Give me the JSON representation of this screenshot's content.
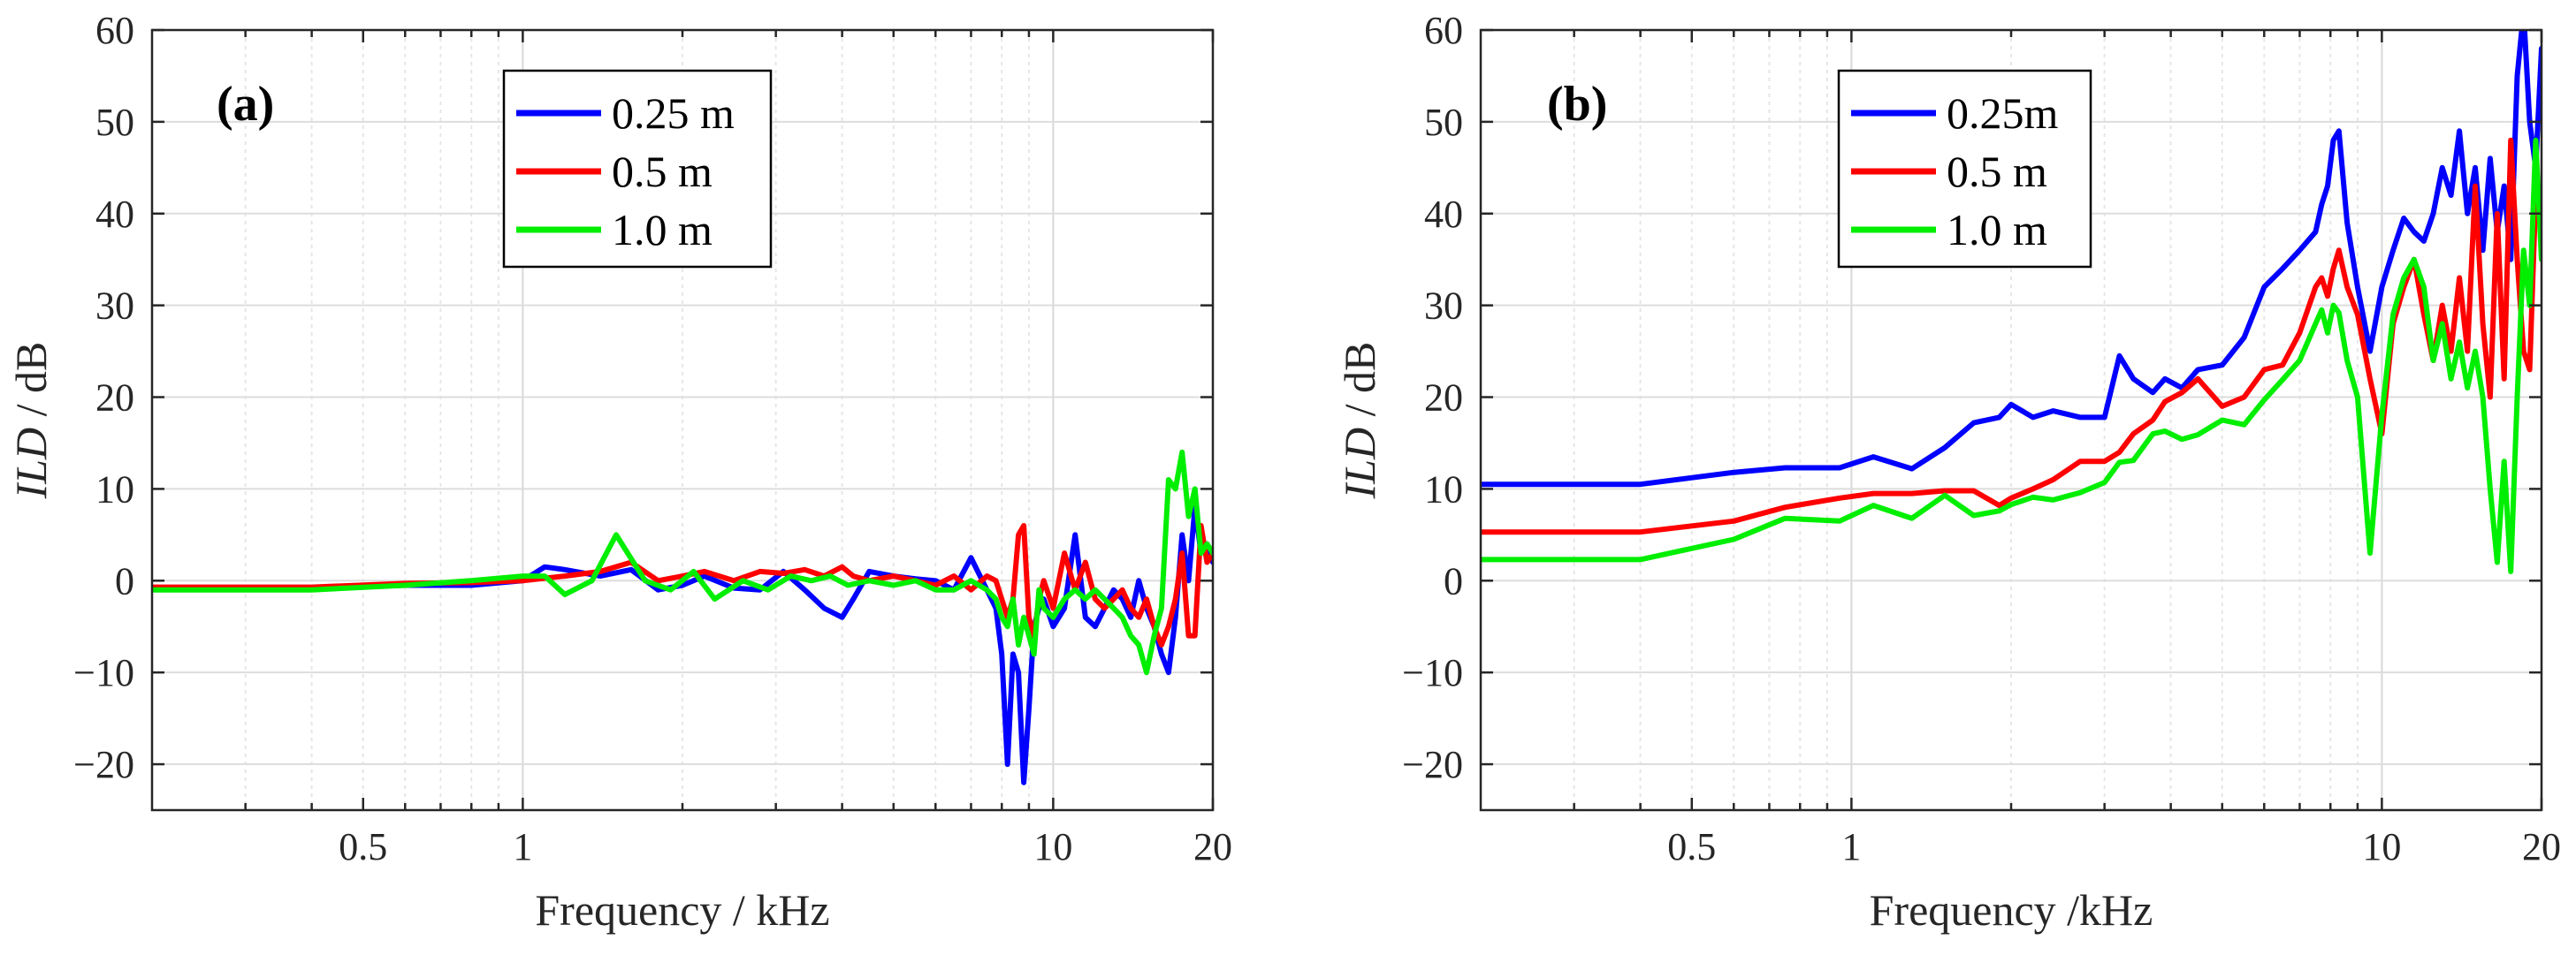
{
  "figure": {
    "description_free": true
  },
  "chart_data": [
    {
      "type": "line",
      "panel_label": "(a)",
      "xscale": "log",
      "xlim": [
        0.2,
        20
      ],
      "ylim": [
        -25,
        60
      ],
      "xticks": [
        0.5,
        1,
        10,
        20
      ],
      "xtick_labels": [
        "0.5",
        "1",
        "10",
        "20"
      ],
      "yticks": [
        -20,
        -10,
        0,
        10,
        20,
        30,
        40,
        50,
        60
      ],
      "ytick_labels": [
        "−20",
        "−10",
        "0",
        "10",
        "20",
        "30",
        "40",
        "50",
        "60"
      ],
      "xlabel": "Frequency / kHz",
      "ylabel_italic": "ILD",
      "ylabel_rest": " / dB",
      "grid": true,
      "legend_position": "top-center",
      "series": [
        {
          "name": "0.25 m",
          "color": "#0000ff",
          "x": [
            0.2,
            0.4,
            0.6,
            0.8,
            1.0,
            1.1,
            1.2,
            1.4,
            1.6,
            1.8,
            2.0,
            2.2,
            2.5,
            2.8,
            3.1,
            3.4,
            3.7,
            4.0,
            4.2,
            4.5,
            5.0,
            5.5,
            6.0,
            6.5,
            7.0,
            7.5,
            7.8,
            8.0,
            8.2,
            8.4,
            8.6,
            8.8,
            9.0,
            9.2,
            9.4,
            9.6,
            10.0,
            10.5,
            11.0,
            11.5,
            12.0,
            12.5,
            13.0,
            13.5,
            14.0,
            14.5,
            15.0,
            15.5,
            16.0,
            16.5,
            17.0,
            17.5,
            18.0,
            18.5,
            19.0,
            19.5,
            20.0
          ],
          "y": [
            -0.8,
            -0.8,
            -0.5,
            -0.5,
            0,
            1.5,
            1.2,
            0.5,
            1.2,
            -1,
            -0.5,
            0.5,
            -0.8,
            -1,
            1,
            -1,
            -3,
            -4,
            -2,
            1,
            0.5,
            0.2,
            0,
            -1,
            2.5,
            -1,
            -3,
            -8,
            -20,
            -8,
            -10,
            -22,
            -14,
            -5,
            -3,
            -2,
            -5,
            -3,
            5,
            -4,
            -5,
            -3,
            -1,
            -2,
            -4,
            0,
            -3,
            -5,
            -8,
            -10,
            -4,
            5,
            0,
            8,
            3,
            4,
            2
          ],
          "width": 6
        },
        {
          "name": "0.5 m",
          "color": "#ff0000",
          "x": [
            0.2,
            0.4,
            0.6,
            0.8,
            1.0,
            1.2,
            1.4,
            1.6,
            1.8,
            2.0,
            2.2,
            2.5,
            2.8,
            3.1,
            3.4,
            3.7,
            4.0,
            4.2,
            4.5,
            5.0,
            5.5,
            6.0,
            6.5,
            7.0,
            7.5,
            7.8,
            8.0,
            8.2,
            8.4,
            8.6,
            8.8,
            9.0,
            9.2,
            9.4,
            9.6,
            10.0,
            10.5,
            11.0,
            11.5,
            12.0,
            12.5,
            13.0,
            13.5,
            14.0,
            14.5,
            15.0,
            15.5,
            16.0,
            16.5,
            17.0,
            17.5,
            18.0,
            18.5,
            19.0,
            19.5,
            20.0
          ],
          "y": [
            -0.7,
            -0.7,
            -0.3,
            -0.2,
            0,
            0.5,
            1,
            2,
            0,
            0.5,
            1,
            0,
            1,
            0.8,
            1.2,
            0.5,
            1.5,
            0.5,
            0,
            0.5,
            0,
            -0.5,
            0.5,
            -1,
            0.5,
            0,
            -2,
            -4,
            -2,
            5,
            6,
            -4,
            -6,
            -2,
            0,
            -3,
            3,
            -1,
            2,
            -2,
            -3,
            -2,
            -1,
            -3,
            -4,
            -2,
            -5,
            -7,
            -5,
            -2,
            3,
            -6,
            -6,
            6,
            2,
            3
          ],
          "width": 6
        },
        {
          "name": "1.0 m",
          "color": "#00ee00",
          "x": [
            0.2,
            0.4,
            0.6,
            0.8,
            1.0,
            1.1,
            1.2,
            1.35,
            1.5,
            1.7,
            1.9,
            2.1,
            2.3,
            2.6,
            2.9,
            3.2,
            3.5,
            3.8,
            4.1,
            4.5,
            5.0,
            5.5,
            6.0,
            6.5,
            7.0,
            7.5,
            7.8,
            8.0,
            8.2,
            8.4,
            8.6,
            8.8,
            9.0,
            9.2,
            9.4,
            9.6,
            10.0,
            10.5,
            11.0,
            11.5,
            12.0,
            12.5,
            13.0,
            13.5,
            14.0,
            14.5,
            15.0,
            15.5,
            16.0,
            16.5,
            17.0,
            17.5,
            18.0,
            18.5,
            19.0,
            19.5,
            20.0
          ],
          "y": [
            -1,
            -1,
            -0.5,
            0,
            0.5,
            0.5,
            -1.5,
            0,
            5,
            0,
            -1,
            1,
            -2,
            0,
            -1,
            0.5,
            0,
            0.5,
            -0.5,
            0,
            -0.5,
            0,
            -1,
            -1,
            0,
            -1,
            -2,
            -4,
            -5,
            -2,
            -7,
            -4,
            -6,
            -8,
            -1,
            -3,
            -4,
            -2,
            -1,
            -2,
            -1,
            -2,
            -3,
            -4,
            -6,
            -7,
            -10,
            -6,
            -3,
            11,
            10,
            14,
            7,
            10,
            3,
            4,
            3
          ],
          "width": 6
        }
      ]
    },
    {
      "type": "line",
      "panel_label": "(b)",
      "xscale": "log",
      "xlim": [
        0.2,
        20
      ],
      "ylim": [
        -25,
        60
      ],
      "xticks": [
        0.5,
        1,
        10,
        20
      ],
      "xtick_labels": [
        "0.5",
        "1",
        "10",
        "20"
      ],
      "yticks": [
        -20,
        -10,
        0,
        10,
        20,
        30,
        40,
        50,
        60
      ],
      "ytick_labels": [
        "−20",
        "−10",
        "0",
        "10",
        "20",
        "30",
        "40",
        "50",
        "60"
      ],
      "xlabel": "Frequency /kHz",
      "ylabel_italic": "ILD",
      "ylabel_rest": " / dB",
      "grid": true,
      "legend_position": "top-center",
      "series": [
        {
          "name": "0.25m",
          "color": "#0000ff",
          "x": [
            0.2,
            0.4,
            0.6,
            0.75,
            0.95,
            1.1,
            1.3,
            1.5,
            1.7,
            1.9,
            2.0,
            2.2,
            2.4,
            2.7,
            3.0,
            3.2,
            3.4,
            3.7,
            3.9,
            4.2,
            4.5,
            5.0,
            5.5,
            6.0,
            6.5,
            7.0,
            7.5,
            7.7,
            7.9,
            8.1,
            8.3,
            8.6,
            9.0,
            9.5,
            10.0,
            10.5,
            11.0,
            11.5,
            12.0,
            12.5,
            13.0,
            13.5,
            14.0,
            14.5,
            15.0,
            15.5,
            16.0,
            16.5,
            17.0,
            17.5,
            18.0,
            18.5,
            19.0,
            19.5,
            20.0
          ],
          "y": [
            10.5,
            10.5,
            11.8,
            12.3,
            12.3,
            13.5,
            12.2,
            14.5,
            17.2,
            17.8,
            19.2,
            17.8,
            18.5,
            17.8,
            17.8,
            24.5,
            22,
            20.5,
            22,
            21,
            23,
            23.5,
            26.5,
            32,
            34,
            36,
            38,
            41,
            43,
            48,
            49,
            39,
            32,
            25,
            32,
            36,
            39.5,
            38,
            37,
            40,
            45,
            42,
            49,
            40,
            45,
            36,
            46,
            38,
            43,
            35,
            55,
            62,
            50,
            45,
            58
          ],
          "width": 6
        },
        {
          "name": "0.5 m",
          "color": "#ff0000",
          "x": [
            0.2,
            0.4,
            0.6,
            0.75,
            0.95,
            1.1,
            1.3,
            1.5,
            1.7,
            1.9,
            2.0,
            2.2,
            2.4,
            2.7,
            3.0,
            3.2,
            3.4,
            3.7,
            3.9,
            4.2,
            4.5,
            5.0,
            5.5,
            6.0,
            6.5,
            7.0,
            7.5,
            7.7,
            7.9,
            8.1,
            8.3,
            8.6,
            9.0,
            9.5,
            10.0,
            10.5,
            11.0,
            11.5,
            12.0,
            12.5,
            13.0,
            13.5,
            14.0,
            14.5,
            15.0,
            15.5,
            16.0,
            16.5,
            17.0,
            17.5,
            18.0,
            18.5,
            19.0,
            19.5,
            20.0
          ],
          "y": [
            5.3,
            5.3,
            6.5,
            8,
            9,
            9.5,
            9.5,
            9.8,
            9.8,
            8.2,
            9,
            10,
            11,
            13,
            13,
            14,
            16,
            17.5,
            19.5,
            20.5,
            22,
            19,
            20,
            23,
            23.5,
            27,
            32,
            33,
            31,
            34,
            36,
            32,
            29,
            22,
            16,
            28,
            32,
            35,
            29,
            24,
            30,
            25,
            33,
            25,
            43,
            28,
            20,
            40,
            22,
            48,
            35,
            25,
            23,
            42,
            40
          ],
          "width": 6
        },
        {
          "name": "1.0 m",
          "color": "#00ee00",
          "x": [
            0.2,
            0.4,
            0.6,
            0.75,
            0.95,
            1.1,
            1.3,
            1.5,
            1.7,
            1.9,
            2.0,
            2.2,
            2.4,
            2.7,
            3.0,
            3.2,
            3.4,
            3.7,
            3.9,
            4.2,
            4.5,
            5.0,
            5.5,
            6.0,
            6.5,
            7.0,
            7.5,
            7.7,
            7.9,
            8.1,
            8.3,
            8.6,
            9.0,
            9.5,
            10.0,
            10.5,
            11.0,
            11.5,
            12.0,
            12.5,
            13.0,
            13.5,
            14.0,
            14.5,
            15.0,
            15.5,
            16.0,
            16.5,
            17.0,
            17.5,
            18.0,
            18.5,
            19.0,
            19.5,
            20.0
          ],
          "y": [
            2.3,
            2.3,
            4.5,
            6.8,
            6.5,
            8.2,
            6.8,
            9.3,
            7.1,
            7.6,
            8.3,
            9.1,
            8.8,
            9.6,
            10.7,
            12.9,
            13.1,
            16,
            16.3,
            15.4,
            15.9,
            17.5,
            17,
            19.7,
            21.9,
            24,
            28,
            29.5,
            27,
            30,
            29.2,
            24,
            20,
            3,
            18,
            29,
            33,
            35,
            32,
            24,
            28,
            22,
            26,
            21,
            25,
            20,
            10,
            2,
            13,
            1,
            20,
            36,
            30,
            48,
            35
          ],
          "width": 6
        }
      ]
    }
  ]
}
